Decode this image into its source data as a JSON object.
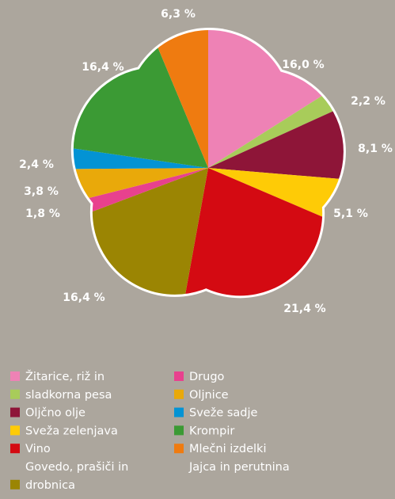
{
  "chart_data": {
    "type": "pie",
    "values": [
      16.0,
      2.2,
      8.1,
      5.1,
      21.4,
      16.4,
      1.8,
      3.8,
      2.4,
      16.4,
      6.3
    ],
    "value_labels": [
      "16,0 %",
      "2,2 %",
      "8,1 %",
      "5,1 %",
      "21,4 %",
      "16,4 %",
      "1,8 %",
      "3,8 %",
      "2,4 %",
      "16,4 %",
      "6,3 %"
    ],
    "colors": [
      "#ee82b5",
      "#a8cc5a",
      "#8e1538",
      "#fecb06",
      "#d40a12",
      "#9b8503",
      "#e8418e",
      "#e9a90a",
      "#0393d4",
      "#3b9a34",
      "#ef7b10"
    ],
    "legend": [
      {
        "label": "Žitarice, riž in",
        "color": "#ee82b5"
      },
      {
        "label": "sladkorna pesa",
        "color": "#a8cc5a"
      },
      {
        "label": "Oljčno olje",
        "color": "#8e1538"
      },
      {
        "label": "Sveža zelenjava",
        "color": "#fecb06"
      },
      {
        "label": "Vino",
        "color": "#d40a12"
      },
      {
        "label": "Govedo, prašiči in"
      },
      {
        "label": "drobnica",
        "color": "#9b8503"
      },
      {
        "label": "Drugo",
        "color": "#e8418e"
      },
      {
        "label": "Oljnice",
        "color": "#e9a90a"
      },
      {
        "label": "Sveže sadje",
        "color": "#0393d4"
      },
      {
        "label": "Krompir",
        "color": "#3b9a34"
      },
      {
        "label": "Mlečni izdelki",
        "color": "#ef7b10"
      },
      {
        "label": "Jajca in perutnina"
      }
    ]
  }
}
